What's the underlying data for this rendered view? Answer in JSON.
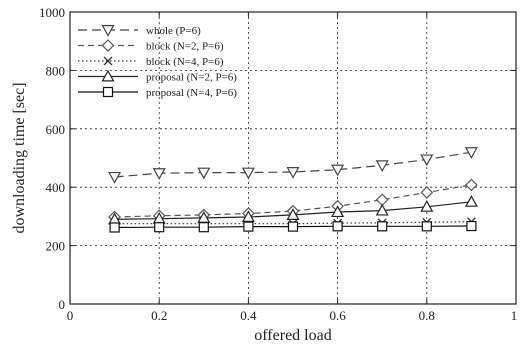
{
  "chart_data": {
    "type": "line",
    "title": "",
    "xlabel": "offered load",
    "ylabel": "downloading time [sec]",
    "xlim": [
      0,
      1
    ],
    "ylim": [
      0,
      1000
    ],
    "xticks": [
      0,
      0.2,
      0.4,
      0.6,
      0.8,
      1
    ],
    "xtick_labels": [
      "0",
      "0.2",
      "0.4",
      "0.6",
      "0.8",
      "1"
    ],
    "yticks": [
      0,
      200,
      400,
      600,
      800,
      1000
    ],
    "ytick_labels": [
      "0",
      "200",
      "400",
      "600",
      "800",
      "1000"
    ],
    "grid": true,
    "legend_position": "top-left",
    "x": [
      0.1,
      0.2,
      0.3,
      0.4,
      0.5,
      0.6,
      0.7,
      0.8,
      0.9
    ],
    "series": [
      {
        "name": "whole (P=6)",
        "marker": "triangle-down",
        "line_style": "long-dash",
        "color": "#444444",
        "values": [
          435,
          448,
          450,
          450,
          452,
          460,
          475,
          495,
          520
        ]
      },
      {
        "name": "block (N=2, P=6)",
        "marker": "diamond",
        "line_style": "dash",
        "color": "#555555",
        "values": [
          298,
          302,
          305,
          310,
          318,
          335,
          357,
          382,
          408
        ]
      },
      {
        "name": "block (N=4, P=6)",
        "marker": "x",
        "line_style": "dot",
        "color": "#333333",
        "values": [
          275,
          275,
          275,
          275,
          275,
          277,
          278,
          280,
          282
        ]
      },
      {
        "name": "proposal (N=2, P=6)",
        "marker": "triangle-up",
        "line_style": "solid",
        "color": "#222222",
        "values": [
          290,
          292,
          295,
          298,
          305,
          315,
          320,
          333,
          350
        ]
      },
      {
        "name": "proposal (N=4, P=6)",
        "marker": "square",
        "line_style": "solid",
        "color": "#111111",
        "values": [
          262,
          263,
          263,
          265,
          265,
          266,
          266,
          266,
          267
        ]
      }
    ]
  }
}
